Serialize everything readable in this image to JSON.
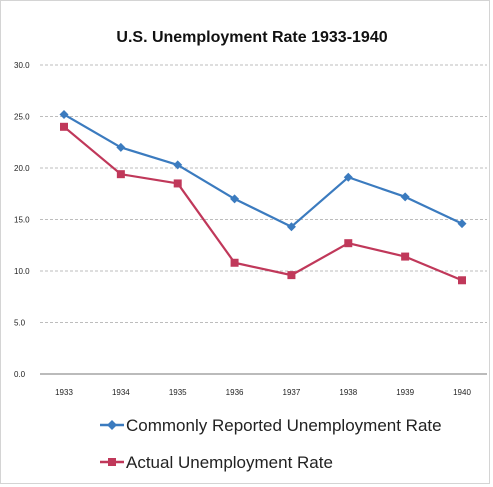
{
  "chart_data": {
    "type": "line",
    "title": "U.S. Unemployment Rate 1933-1940",
    "xlabel": "",
    "ylabel": "",
    "categories": [
      "1933",
      "1934",
      "1935",
      "1936",
      "1937",
      "1938",
      "1939",
      "1940"
    ],
    "ylim": [
      0,
      30
    ],
    "yticks": [
      "0.0",
      "5.0",
      "10.0",
      "15.0",
      "20.0",
      "25.0",
      "30.0"
    ],
    "grid": true,
    "legend_position": "bottom",
    "series": [
      {
        "name": "Commonly Reported Unemployment Rate",
        "color": "#3b7bbf",
        "marker": "diamond",
        "values": [
          25.2,
          22.0,
          20.3,
          17.0,
          14.3,
          19.1,
          17.2,
          14.6
        ]
      },
      {
        "name": "Actual Unemployment Rate",
        "color": "#c0385a",
        "marker": "square",
        "values": [
          24.0,
          19.4,
          18.5,
          10.8,
          9.6,
          12.7,
          11.4,
          9.1
        ]
      }
    ]
  }
}
